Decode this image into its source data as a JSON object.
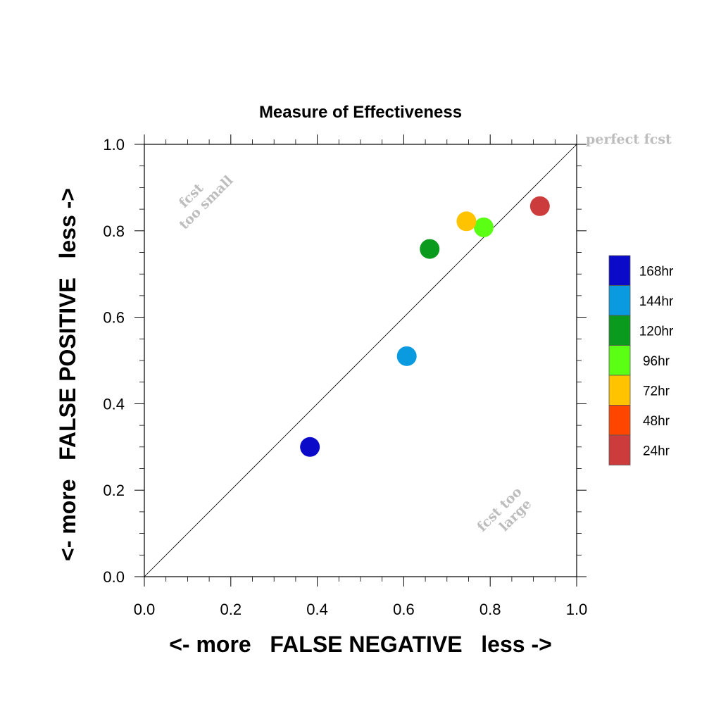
{
  "chart_data": {
    "type": "scatter",
    "title": "Measure of Effectiveness",
    "xlabel": "<- more   FALSE NEGATIVE   less ->",
    "ylabel": "<- more   FALSE POSITIVE   less ->",
    "xlim": [
      0.0,
      1.0
    ],
    "ylim": [
      0.0,
      1.0
    ],
    "xticks": [
      "0.0",
      "0.2",
      "0.4",
      "0.6",
      "0.8",
      "1.0"
    ],
    "yticks": [
      "0.0",
      "0.2",
      "0.4",
      "0.6",
      "0.8",
      "1.0"
    ],
    "tick_values": [
      0.0,
      0.2,
      0.4,
      0.6,
      0.8,
      1.0
    ],
    "grid": false,
    "diagonal_line": true,
    "legend_position": "right",
    "legend": [
      {
        "label": "168hr",
        "color": "#0a0ac8"
      },
      {
        "label": "144hr",
        "color": "#0a9ae0"
      },
      {
        "label": "120hr",
        "color": "#0a9a1e"
      },
      {
        "label": "96hr",
        "color": "#5aff14"
      },
      {
        "label": "72hr",
        "color": "#ffc300"
      },
      {
        "label": "48hr",
        "color": "#ff4600"
      },
      {
        "label": "24hr",
        "color": "#cd3c3c"
      }
    ],
    "points": [
      {
        "series": "168hr",
        "x": 0.383,
        "y": 0.3,
        "color": "#0a0ac8"
      },
      {
        "series": "144hr",
        "x": 0.607,
        "y": 0.51,
        "color": "#0a9ae0"
      },
      {
        "series": "120hr",
        "x": 0.66,
        "y": 0.758,
        "color": "#0a9a1e"
      },
      {
        "series": "96hr",
        "x": 0.785,
        "y": 0.808,
        "color": "#5aff14"
      },
      {
        "series": "72hr",
        "x": 0.745,
        "y": 0.822,
        "color": "#ffc300"
      },
      {
        "series": "24hr",
        "x": 0.915,
        "y": 0.857,
        "color": "#cd3c3c"
      }
    ],
    "annotations": {
      "perfect": "perfect fcst",
      "too_small_1": "fcst",
      "too_small_2": "too small",
      "too_large_1": "fcst too",
      "too_large_2": "large"
    }
  }
}
